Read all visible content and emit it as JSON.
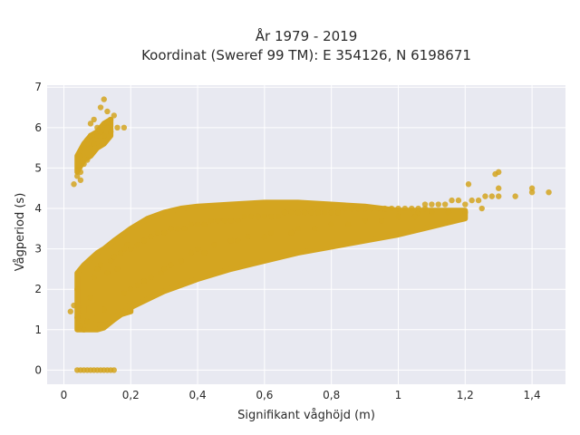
{
  "chart_data": {
    "type": "scatter",
    "title_line1": "År 1979 - 2019",
    "title_line2": "Koordinat (Sweref 99 TM): E 354126, N 6198671",
    "xlabel": "Signifikant våghöjd (m)",
    "ylabel": "Vågperiod (s)",
    "xlim": [
      -0.05,
      1.5
    ],
    "ylim": [
      -0.35,
      7.05
    ],
    "x_ticks": [
      0,
      0.2,
      0.4,
      0.6,
      0.8,
      1,
      1.2,
      1.4
    ],
    "x_tick_labels": [
      "0",
      "0,2",
      "0,4",
      "0,6",
      "0,8",
      "1",
      "1,2",
      "1,4"
    ],
    "y_ticks": [
      0,
      1,
      2,
      3,
      4,
      5,
      6,
      7
    ],
    "y_tick_labels": [
      "0",
      "1",
      "2",
      "3",
      "4",
      "5",
      "6",
      "7"
    ],
    "grid": true,
    "colors": {
      "marker": "#d4a520",
      "plot_bg": "#e8e9f1",
      "grid": "#ffffff"
    },
    "series": [
      {
        "x": [
          0.04,
          0.05,
          0.06,
          0.07,
          0.08,
          0.09,
          0.1,
          0.11,
          0.12,
          0.13,
          0.14,
          0.15,
          0.02,
          0.03,
          0.04,
          0.04,
          0.05,
          0.06,
          0.07,
          0.08,
          0.09,
          0.1,
          0.11,
          0.12,
          0.13,
          0.14,
          0.15,
          0.16,
          0.17,
          0.18,
          0.19,
          0.2,
          0.22,
          0.24,
          0.26,
          0.28,
          0.3,
          0.32,
          0.34,
          0.36,
          0.38,
          0.4,
          0.42,
          0.44,
          0.46,
          0.48,
          0.5,
          0.52,
          0.54,
          0.56,
          0.58,
          0.6,
          0.62,
          0.64,
          0.66,
          0.68,
          0.7,
          0.72,
          0.74,
          0.76,
          0.78,
          0.8,
          0.82,
          0.84,
          0.86,
          0.88,
          0.9,
          0.92,
          0.94,
          0.96,
          0.98,
          1.0,
          1.02,
          1.04,
          1.06,
          1.08,
          1.1,
          1.12,
          1.14,
          1.16,
          1.18,
          1.2,
          1.22,
          1.24,
          1.26,
          1.28,
          1.3,
          1.35,
          1.4,
          1.45,
          0.05,
          0.06,
          0.07,
          0.08,
          0.09,
          0.1,
          0.11,
          0.12,
          0.13,
          0.14,
          0.16,
          0.18,
          0.11,
          0.12,
          0.13,
          0.03,
          0.04,
          0.05,
          0.05,
          0.06,
          0.07,
          0.08,
          0.08,
          0.09,
          0.1,
          0.11,
          0.12,
          0.13,
          0.14,
          0.15,
          0.18,
          0.2,
          0.22,
          0.24,
          0.26,
          0.29,
          0.3,
          0.32,
          0.35,
          0.38,
          0.4,
          0.42,
          0.45,
          0.5,
          0.52,
          0.55,
          0.6,
          0.62,
          0.68,
          0.7,
          0.75,
          0.8,
          0.85,
          0.9,
          0.95,
          1.0,
          1.05,
          1.1,
          1.15,
          1.2,
          1.25,
          1.3,
          1.3,
          1.4,
          1.29,
          1.21,
          1.06,
          1.08
        ],
        "y": [
          0,
          0,
          0,
          0,
          0,
          0,
          0,
          0,
          0,
          0,
          0,
          0,
          1.45,
          1.6,
          1.3,
          2.0,
          1.1,
          1.0,
          1.2,
          1.8,
          2.3,
          2.5,
          2.6,
          1.5,
          2.4,
          2.7,
          2.8,
          2.5,
          2.9,
          3.0,
          3.1,
          3.0,
          3.1,
          3.2,
          3.3,
          3.4,
          3.4,
          3.5,
          3.5,
          3.5,
          3.6,
          3.6,
          3.6,
          3.7,
          3.7,
          3.7,
          3.7,
          3.7,
          3.8,
          3.8,
          3.8,
          3.8,
          3.8,
          3.8,
          3.9,
          3.9,
          3.9,
          3.9,
          3.9,
          3.9,
          3.9,
          3.9,
          3.9,
          4.0,
          4.0,
          4.0,
          4.0,
          4.0,
          4.0,
          4.0,
          4.0,
          4.0,
          4.0,
          4.0,
          3.9,
          4.0,
          4.1,
          4.1,
          4.1,
          4.2,
          4.2,
          4.1,
          4.2,
          4.2,
          4.3,
          4.3,
          4.3,
          4.3,
          4.4,
          4.4,
          4.9,
          5.1,
          5.2,
          5.5,
          5.6,
          5.8,
          5.9,
          6.0,
          6.1,
          6.2,
          6.0,
          6.0,
          6.5,
          6.7,
          6.4,
          4.6,
          4.8,
          4.7,
          5.3,
          5.5,
          5.7,
          5.8,
          6.1,
          6.2,
          6.0,
          5.9,
          5.8,
          6.0,
          5.9,
          6.3,
          1.9,
          2.0,
          2.1,
          2.2,
          2.3,
          2.4,
          2.5,
          2.6,
          2.7,
          2.9,
          3.0,
          2.9,
          3.1,
          3.2,
          3.2,
          3.3,
          3.3,
          3.4,
          3.4,
          3.5,
          3.5,
          3.6,
          3.6,
          3.7,
          3.7,
          3.8,
          3.8,
          3.9,
          3.9,
          3.9,
          4.0,
          4.9,
          4.5,
          4.5,
          4.85,
          4.6,
          4.0,
          4.1
        ]
      }
    ],
    "bands": [
      {
        "x": [
          0.04,
          0.06,
          0.08,
          0.1,
          0.12,
          0.15,
          0.2,
          0.25,
          0.3,
          0.35,
          0.4,
          0.5,
          0.6,
          0.7,
          0.8,
          0.9,
          1.0,
          1.1,
          1.2
        ],
        "y_low": [
          1.0,
          1.0,
          1.0,
          1.0,
          1.05,
          1.25,
          1.55,
          1.75,
          1.95,
          2.1,
          2.25,
          2.5,
          2.7,
          2.9,
          3.05,
          3.2,
          3.35,
          3.55,
          3.75
        ],
        "y_high": [
          2.4,
          2.6,
          2.75,
          2.9,
          3.0,
          3.2,
          3.5,
          3.75,
          3.9,
          4.0,
          4.05,
          4.1,
          4.15,
          4.15,
          4.1,
          4.05,
          3.95,
          3.95,
          3.95
        ]
      },
      {
        "x": [
          0.06,
          0.08,
          0.1,
          0.12,
          0.14,
          0.2
        ],
        "y_low": [
          1.35,
          1.3,
          1.25,
          1.25,
          1.3,
          1.45
        ],
        "y_high": [
          1.7,
          1.65,
          1.6,
          1.6,
          1.55,
          1.6
        ]
      },
      {
        "x": [
          0.04,
          0.06,
          0.08,
          0.1,
          0.12,
          0.14
        ],
        "y_low": [
          4.9,
          5.2,
          5.3,
          5.5,
          5.6,
          5.8
        ],
        "y_high": [
          5.3,
          5.6,
          5.8,
          5.9,
          6.1,
          6.2
        ]
      }
    ]
  }
}
